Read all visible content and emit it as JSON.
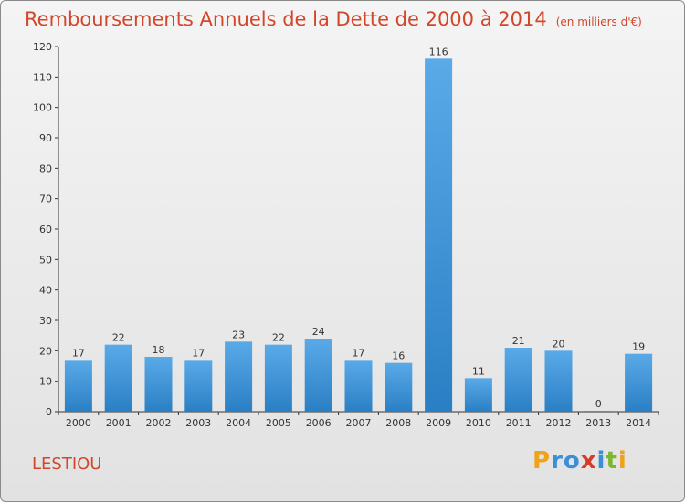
{
  "header": {
    "title": "Remboursements Annuels de la Dette de 2000 à 2014",
    "unit": "(en milliers d'€)"
  },
  "footer": {
    "commune": "LESTIOU",
    "logo_letters": [
      {
        "ch": "P",
        "color": "#f0a21b"
      },
      {
        "ch": "r",
        "color": "#3b8fd6"
      },
      {
        "ch": "o",
        "color": "#3b8fd6"
      },
      {
        "ch": "x",
        "color": "#d43d2a"
      },
      {
        "ch": "i",
        "color": "#3b8fd6"
      },
      {
        "ch": "t",
        "color": "#7cb82f"
      },
      {
        "ch": "i",
        "color": "#f0a21b"
      }
    ]
  },
  "chart_data": {
    "type": "bar",
    "title": "Remboursements Annuels de la Dette de 2000 à 2014",
    "subtitle": "(en milliers d'€)",
    "categories": [
      "2000",
      "2001",
      "2002",
      "2003",
      "2004",
      "2005",
      "2006",
      "2007",
      "2008",
      "2009",
      "2010",
      "2011",
      "2012",
      "2013",
      "2014"
    ],
    "values": [
      17,
      22,
      18,
      17,
      23,
      22,
      24,
      17,
      16,
      116,
      11,
      21,
      20,
      0,
      19
    ],
    "xlabel": "",
    "ylabel": "",
    "ylim": [
      0,
      120
    ],
    "yticks": [
      0,
      10,
      20,
      30,
      40,
      50,
      60,
      70,
      80,
      90,
      100,
      110,
      120
    ],
    "grid": false,
    "bar_color_top": "#5aaae8",
    "bar_color_bottom": "#2a7fc4",
    "axis_color": "#333333"
  }
}
